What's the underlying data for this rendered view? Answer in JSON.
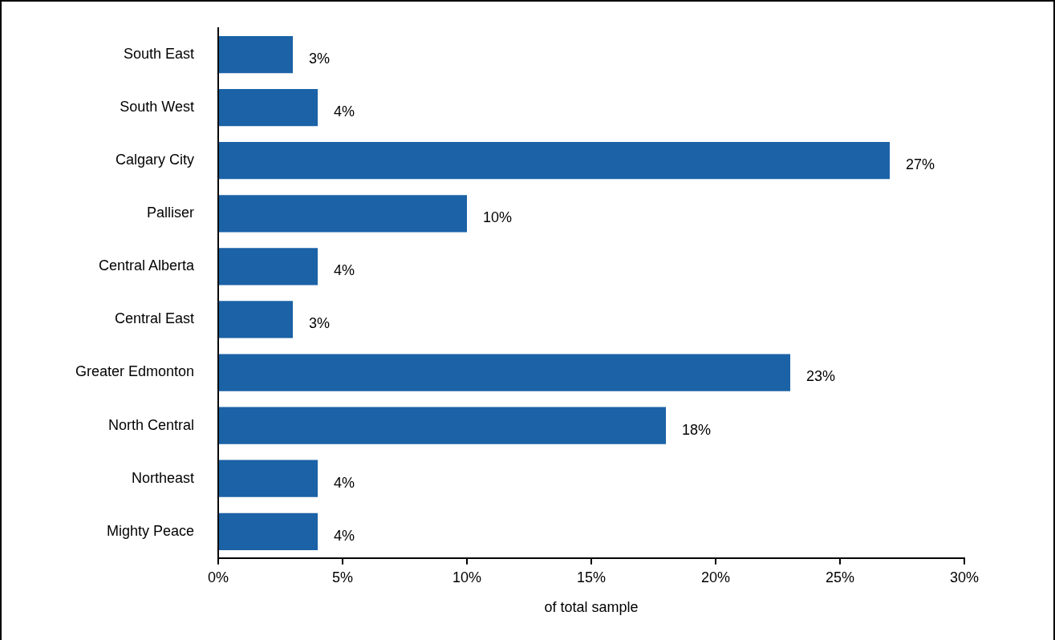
{
  "chart_data": {
    "type": "bar",
    "orientation": "horizontal",
    "xlabel": "of total sample",
    "categories": [
      "South East",
      "South West",
      "Calgary City",
      "Palliser",
      "Central Alberta",
      "Central East",
      "Greater Edmonton",
      "North Central",
      "Northeast",
      "Mighty Peace"
    ],
    "values": [
      3,
      4,
      27,
      10,
      4,
      3,
      23,
      18,
      4,
      4
    ],
    "value_labels": [
      "3%",
      "4%",
      "27%",
      "10%",
      "4%",
      "3%",
      "23%",
      "18%",
      "4%",
      "4%"
    ],
    "color": "#1b62a6",
    "xlim": [
      0,
      30
    ],
    "xticks": [
      {
        "value": 0,
        "label": "0%"
      },
      {
        "value": 5,
        "label": "5%"
      },
      {
        "value": 10,
        "label": "10%"
      },
      {
        "value": 15,
        "label": "15%"
      },
      {
        "value": 20,
        "label": "20%"
      },
      {
        "value": 25,
        "label": "25%"
      },
      {
        "value": 30,
        "label": "30%"
      }
    ],
    "grid": false,
    "legend": false
  }
}
